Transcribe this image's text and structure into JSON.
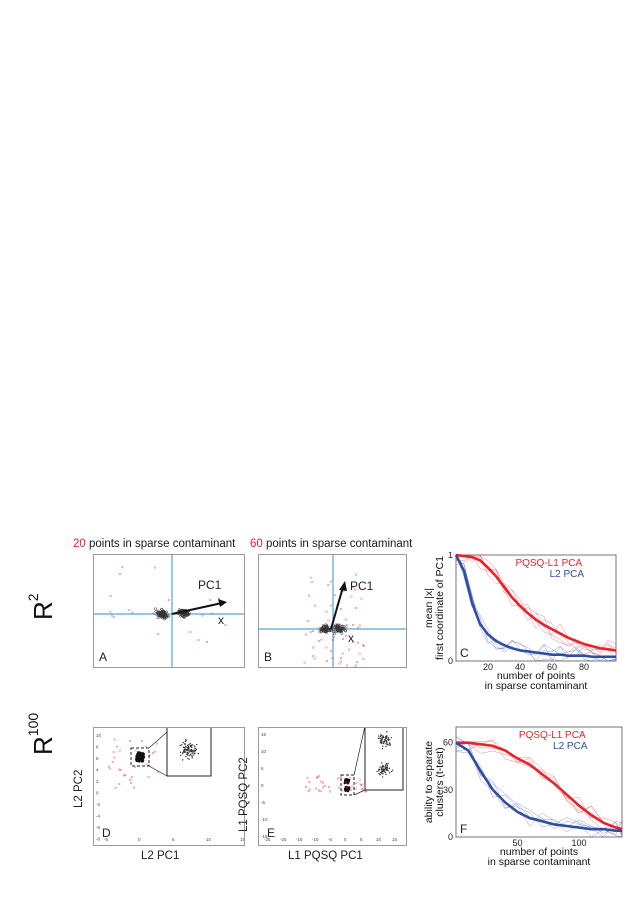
{
  "titles": {
    "left": {
      "number": "20",
      "text": " points in sparse contaminant"
    },
    "mid": {
      "number": "60",
      "text": " points in sparse contaminant"
    }
  },
  "row_labels": {
    "r2": {
      "base": "R",
      "exp": "2"
    },
    "r100": {
      "base": "R",
      "exp": "100"
    }
  },
  "panels": {
    "A": {
      "letter": "A",
      "vector_label": "PC1",
      "x_label": "x"
    },
    "B": {
      "letter": "B",
      "vector_label": "PC1",
      "x_label": "x"
    },
    "D": {
      "letter": "D",
      "xlabel": "L2 PC1",
      "ylabel": "L2 PC2",
      "xticks": [
        "-5",
        "0",
        "5",
        "10",
        "15"
      ],
      "yticks": [
        "10",
        "8",
        "6",
        "4",
        "2",
        "0",
        "-2",
        "-4",
        "-6",
        "-8"
      ]
    },
    "E": {
      "letter": "E",
      "xlabel": "L1 PQSQ PC1",
      "ylabel": "L1 PQSQ PC2",
      "xticks": [
        "-25",
        "-20",
        "-15",
        "-10",
        "-5",
        "0",
        "5",
        "10",
        "15"
      ],
      "yticks": [
        "15",
        "10",
        "5",
        "0",
        "-5",
        "-10",
        "-15"
      ]
    }
  },
  "colors": {
    "red": "#e3242b",
    "blue": "#2f4ea3",
    "lightblue": "#5aa3d8",
    "black": "#222222"
  },
  "chart_data": [
    {
      "id": "C",
      "type": "line",
      "letter": "C",
      "ylabel_line1": "mean |x|",
      "ylabel_line2": "first coordinate of PC1",
      "xlabel_line1": "number of points",
      "xlabel_line2": "in sparse contaminant",
      "xticks": [
        "20",
        "40",
        "60",
        "80"
      ],
      "yticks": [
        "1",
        "0"
      ],
      "xlim": [
        0,
        100
      ],
      "ylim": [
        0,
        1
      ],
      "series": [
        {
          "name": "PQSQ-L1 PCA",
          "color": "#e3242b",
          "x": [
            0,
            5,
            10,
            15,
            20,
            25,
            30,
            35,
            40,
            45,
            50,
            55,
            60,
            65,
            70,
            75,
            80,
            85,
            90,
            95,
            100
          ],
          "y": [
            1.0,
            0.99,
            0.98,
            0.95,
            0.88,
            0.8,
            0.7,
            0.6,
            0.52,
            0.45,
            0.39,
            0.34,
            0.3,
            0.26,
            0.22,
            0.19,
            0.16,
            0.14,
            0.12,
            0.11,
            0.1
          ]
        },
        {
          "name": "L2 PCA",
          "color": "#2f4ea3",
          "x": [
            0,
            5,
            10,
            15,
            20,
            25,
            30,
            35,
            40,
            45,
            50,
            55,
            60,
            65,
            70,
            75,
            80,
            85,
            90,
            95,
            100
          ],
          "y": [
            1.0,
            0.85,
            0.55,
            0.35,
            0.25,
            0.19,
            0.15,
            0.12,
            0.1,
            0.09,
            0.08,
            0.07,
            0.06,
            0.06,
            0.05,
            0.05,
            0.05,
            0.04,
            0.04,
            0.04,
            0.04
          ]
        }
      ]
    },
    {
      "id": "F",
      "type": "line",
      "letter": "F",
      "ylabel_line1": "ability to separate",
      "ylabel_line2": "clusters (t-test)",
      "xlabel_line1": "number of points",
      "xlabel_line2": "in sparse contaminant",
      "xticks": [
        "50",
        "100"
      ],
      "yticks": [
        "60",
        "30",
        "0"
      ],
      "xlim": [
        0,
        135
      ],
      "ylim": [
        0,
        70
      ],
      "series": [
        {
          "name": "PQSQ-L1 PCA",
          "color": "#e3242b",
          "x": [
            0,
            10,
            20,
            30,
            40,
            50,
            60,
            70,
            80,
            90,
            100,
            110,
            120,
            130,
            135
          ],
          "y": [
            60,
            60,
            59,
            58,
            55,
            50,
            46,
            40,
            34,
            27,
            20,
            14,
            9,
            6,
            5
          ]
        },
        {
          "name": "L2 PCA",
          "color": "#2f4ea3",
          "x": [
            0,
            10,
            20,
            30,
            40,
            50,
            60,
            70,
            80,
            90,
            100,
            110,
            120,
            130,
            135
          ],
          "y": [
            60,
            55,
            42,
            30,
            22,
            16,
            12,
            10,
            8,
            7,
            6,
            5,
            5,
            4,
            4
          ]
        }
      ]
    }
  ]
}
